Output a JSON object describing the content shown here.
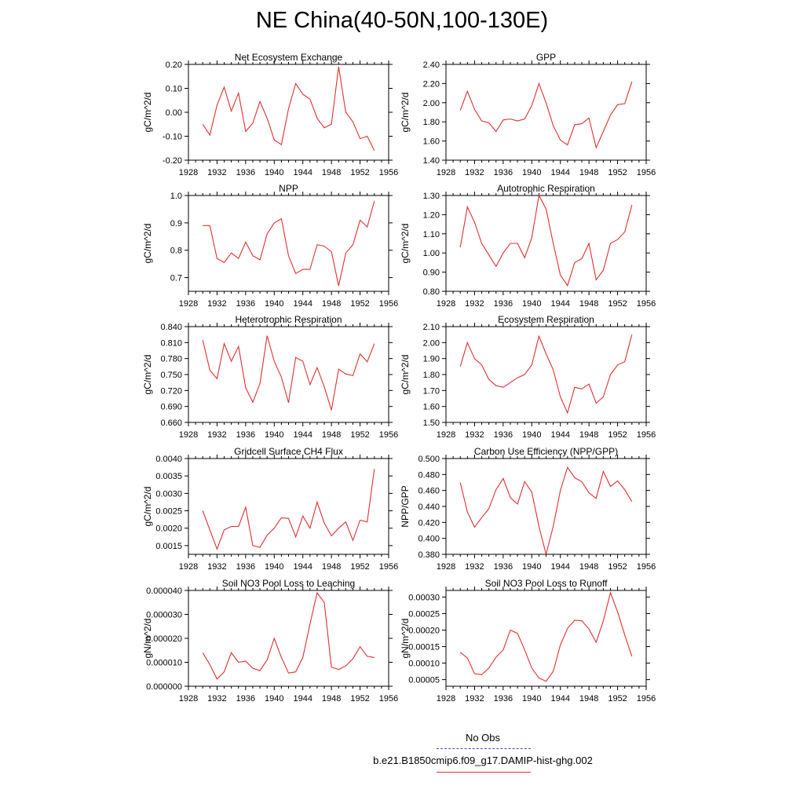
{
  "title": "NE China(40-50N,100-130E)",
  "legend": {
    "obs_label": "No Obs",
    "model_label": "b.e21.B1850cmip6.f09_g17.DAMIP-hist-ghg.002",
    "obs_color": "#4a4ad0",
    "model_color": "#e03030"
  },
  "chart_data": [
    {
      "type": "line",
      "title": "Net Ecosystem Exchange",
      "ylabel": "gC/m^2/d",
      "xlim": [
        1928,
        1956
      ],
      "xticks": [
        "1928",
        "1932",
        "1936",
        "1940",
        "1944",
        "1948",
        "1952",
        "1956"
      ],
      "ylim": [
        -0.2,
        0.2
      ],
      "yticks": [
        "-0.20",
        "-0.10",
        "0.00",
        "0.10",
        "0.20"
      ],
      "x": [
        1930,
        1931,
        1932,
        1933,
        1934,
        1935,
        1936,
        1937,
        1938,
        1939,
        1940,
        1941,
        1942,
        1943,
        1944,
        1945,
        1946,
        1947,
        1948,
        1949,
        1950,
        1951,
        1952,
        1953,
        1954
      ],
      "values": [
        -0.05,
        -0.095,
        0.03,
        0.105,
        0.005,
        0.08,
        -0.08,
        -0.045,
        0.045,
        -0.025,
        -0.115,
        -0.135,
        0.015,
        0.12,
        0.075,
        0.055,
        -0.025,
        -0.065,
        -0.05,
        0.19,
        0.0,
        -0.04,
        -0.11,
        -0.1,
        -0.16
      ]
    },
    {
      "type": "line",
      "title": "GPP",
      "ylabel": "gC/m^2/d",
      "xlim": [
        1928,
        1956
      ],
      "xticks": [
        "1928",
        "1932",
        "1936",
        "1940",
        "1944",
        "1948",
        "1952",
        "1956"
      ],
      "ylim": [
        1.4,
        2.4
      ],
      "yticks": [
        "1.40",
        "1.60",
        "1.80",
        "2.00",
        "2.20",
        "2.40"
      ],
      "x": [
        1930,
        1931,
        1932,
        1933,
        1934,
        1935,
        1936,
        1937,
        1938,
        1939,
        1940,
        1941,
        1942,
        1943,
        1944,
        1945,
        1946,
        1947,
        1948,
        1949,
        1950,
        1951,
        1952,
        1953,
        1954
      ],
      "values": [
        1.92,
        2.12,
        1.93,
        1.81,
        1.79,
        1.7,
        1.82,
        1.83,
        1.81,
        1.83,
        1.97,
        2.2,
        2.0,
        1.76,
        1.61,
        1.56,
        1.77,
        1.78,
        1.84,
        1.53,
        1.7,
        1.87,
        1.98,
        1.99,
        2.22
      ]
    },
    {
      "type": "line",
      "title": "NPP",
      "ylabel": "gC/m^2/d",
      "xlim": [
        1928,
        1956
      ],
      "xticks": [
        "1928",
        "1932",
        "1936",
        "1940",
        "1944",
        "1948",
        "1952",
        "1956"
      ],
      "ylim": [
        0.65,
        1.0
      ],
      "yticks": [
        "0.7",
        "0.8",
        "0.9",
        "1.0"
      ],
      "ytick_values": [
        0.7,
        0.8,
        0.9,
        1.0
      ],
      "x": [
        1930,
        1931,
        1932,
        1933,
        1934,
        1935,
        1936,
        1937,
        1938,
        1939,
        1940,
        1941,
        1942,
        1943,
        1944,
        1945,
        1946,
        1947,
        1948,
        1949,
        1950,
        1951,
        1952,
        1953,
        1954
      ],
      "values": [
        0.89,
        0.89,
        0.77,
        0.755,
        0.79,
        0.77,
        0.83,
        0.78,
        0.765,
        0.86,
        0.9,
        0.915,
        0.78,
        0.715,
        0.73,
        0.73,
        0.82,
        0.815,
        0.795,
        0.67,
        0.79,
        0.82,
        0.91,
        0.885,
        0.98
      ]
    },
    {
      "type": "line",
      "title": "Autotrophic Respiration",
      "ylabel": "gC/m^2/d",
      "xlim": [
        1928,
        1956
      ],
      "xticks": [
        "1928",
        "1932",
        "1936",
        "1940",
        "1944",
        "1948",
        "1952",
        "1956"
      ],
      "ylim": [
        0.8,
        1.3
      ],
      "yticks": [
        "0.80",
        "0.90",
        "1.00",
        "1.10",
        "1.20",
        "1.30"
      ],
      "x": [
        1930,
        1931,
        1932,
        1933,
        1934,
        1935,
        1936,
        1937,
        1938,
        1939,
        1940,
        1941,
        1942,
        1943,
        1944,
        1945,
        1946,
        1947,
        1948,
        1949,
        1950,
        1951,
        1952,
        1953,
        1954
      ],
      "values": [
        1.03,
        1.24,
        1.16,
        1.05,
        0.99,
        0.93,
        1.0,
        1.05,
        1.05,
        0.975,
        1.08,
        1.3,
        1.23,
        1.05,
        0.885,
        0.83,
        0.95,
        0.97,
        1.05,
        0.86,
        0.91,
        1.05,
        1.07,
        1.11,
        1.25
      ]
    },
    {
      "type": "line",
      "title": "Heterotrophic Respiration",
      "ylabel": "gC/m^2/d",
      "xlim": [
        1928,
        1956
      ],
      "xticks": [
        "1928",
        "1932",
        "1936",
        "1940",
        "1944",
        "1948",
        "1952",
        "1956"
      ],
      "ylim": [
        0.66,
        0.84
      ],
      "yticks": [
        "0.660",
        "0.690",
        "0.720",
        "0.750",
        "0.780",
        "0.810",
        "0.840"
      ],
      "x": [
        1930,
        1931,
        1932,
        1933,
        1934,
        1935,
        1936,
        1937,
        1938,
        1939,
        1940,
        1941,
        1942,
        1943,
        1944,
        1945,
        1946,
        1947,
        1948,
        1949,
        1950,
        1951,
        1952,
        1953,
        1954
      ],
      "values": [
        0.815,
        0.758,
        0.742,
        0.808,
        0.775,
        0.803,
        0.725,
        0.698,
        0.733,
        0.823,
        0.775,
        0.745,
        0.697,
        0.782,
        0.775,
        0.731,
        0.763,
        0.727,
        0.683,
        0.76,
        0.751,
        0.748,
        0.789,
        0.774,
        0.808
      ]
    },
    {
      "type": "line",
      "title": "Ecosystem Respiration",
      "ylabel": "gC/m^2/d",
      "xlim": [
        1928,
        1956
      ],
      "xticks": [
        "1928",
        "1932",
        "1936",
        "1940",
        "1944",
        "1948",
        "1952",
        "1956"
      ],
      "ylim": [
        1.5,
        2.1
      ],
      "yticks": [
        "1.50",
        "1.60",
        "1.70",
        "1.80",
        "1.90",
        "2.00",
        "2.10"
      ],
      "x": [
        1930,
        1931,
        1932,
        1933,
        1934,
        1935,
        1936,
        1937,
        1938,
        1939,
        1940,
        1941,
        1942,
        1943,
        1944,
        1945,
        1946,
        1947,
        1948,
        1949,
        1950,
        1951,
        1952,
        1953,
        1954
      ],
      "values": [
        1.85,
        2.0,
        1.9,
        1.86,
        1.77,
        1.73,
        1.72,
        1.75,
        1.78,
        1.8,
        1.86,
        2.04,
        1.93,
        1.83,
        1.66,
        1.56,
        1.72,
        1.71,
        1.74,
        1.62,
        1.66,
        1.8,
        1.86,
        1.88,
        2.05
      ]
    },
    {
      "type": "line",
      "title": "Gridcell Surface CH4 Flux",
      "ylabel": "gC/m^2/d",
      "xlim": [
        1928,
        1956
      ],
      "xticks": [
        "1928",
        "1932",
        "1936",
        "1940",
        "1944",
        "1948",
        "1952",
        "1956"
      ],
      "ylim": [
        0.00125,
        0.004
      ],
      "yticks": [
        "0.0015",
        "0.0020",
        "0.0025",
        "0.0030",
        "0.0035",
        "0.0040"
      ],
      "ytick_values": [
        0.0015,
        0.002,
        0.0025,
        0.003,
        0.0035,
        0.004
      ],
      "x": [
        1930,
        1931,
        1932,
        1933,
        1934,
        1935,
        1936,
        1937,
        1938,
        1939,
        1940,
        1941,
        1942,
        1943,
        1944,
        1945,
        1946,
        1947,
        1948,
        1949,
        1950,
        1951,
        1952,
        1953,
        1954
      ],
      "values": [
        0.0025,
        0.00195,
        0.0014,
        0.00195,
        0.00205,
        0.00205,
        0.0026,
        0.0015,
        0.00145,
        0.0018,
        0.002,
        0.0023,
        0.00228,
        0.00175,
        0.00235,
        0.002,
        0.00275,
        0.00215,
        0.00178,
        0.002,
        0.00218,
        0.00165,
        0.00223,
        0.00218,
        0.0037
      ]
    },
    {
      "type": "line",
      "title": "Carbon Use Efficiency (NPP/GPP)",
      "ylabel": "NPP/GPP",
      "xlim": [
        1928,
        1956
      ],
      "xticks": [
        "1928",
        "1932",
        "1936",
        "1940",
        "1944",
        "1948",
        "1952",
        "1956"
      ],
      "ylim": [
        0.38,
        0.5
      ],
      "yticks": [
        "0.380",
        "0.400",
        "0.420",
        "0.440",
        "0.460",
        "0.480",
        "0.500"
      ],
      "x": [
        1930,
        1931,
        1932,
        1933,
        1934,
        1935,
        1936,
        1937,
        1938,
        1939,
        1940,
        1941,
        1942,
        1943,
        1944,
        1945,
        1946,
        1947,
        1948,
        1949,
        1950,
        1951,
        1952,
        1953,
        1954
      ],
      "values": [
        0.47,
        0.433,
        0.414,
        0.426,
        0.437,
        0.461,
        0.475,
        0.451,
        0.443,
        0.471,
        0.458,
        0.415,
        0.38,
        0.415,
        0.46,
        0.489,
        0.476,
        0.471,
        0.457,
        0.45,
        0.484,
        0.465,
        0.472,
        0.461,
        0.446
      ]
    },
    {
      "type": "line",
      "title": "Soil NO3 Pool Loss to Leaching",
      "ylabel": "gN/m^2/d",
      "xlim": [
        1928,
        1956
      ],
      "xticks": [
        "1928",
        "1932",
        "1936",
        "1940",
        "1944",
        "1948",
        "1952",
        "1956"
      ],
      "ylim": [
        0.0,
        4e-05
      ],
      "yticks": [
        "0.000000",
        "0.000010",
        "0.000020",
        "0.000030",
        "0.000040"
      ],
      "x": [
        1930,
        1931,
        1932,
        1933,
        1934,
        1935,
        1936,
        1937,
        1938,
        1939,
        1940,
        1941,
        1942,
        1943,
        1944,
        1945,
        1946,
        1947,
        1948,
        1949,
        1950,
        1951,
        1952,
        1953,
        1954
      ],
      "values": [
        1.4e-05,
        9e-06,
        3e-06,
        6e-06,
        1.4e-05,
        1e-05,
        1.05e-05,
        7.5e-06,
        6.5e-06,
        1.1e-05,
        2e-05,
        1.2e-05,
        5.5e-06,
        6e-06,
        1.2e-05,
        2.6e-05,
        3.9e-05,
        3.5e-05,
        8e-06,
        7e-06,
        8.5e-06,
        1.15e-05,
        1.65e-05,
        1.25e-05,
        1.2e-05
      ]
    },
    {
      "type": "line",
      "title": "Soil NO3 Pool Loss to Runoff",
      "ylabel": "gN/m^2/d",
      "xlim": [
        1928,
        1956
      ],
      "xticks": [
        "1928",
        "1932",
        "1936",
        "1940",
        "1944",
        "1948",
        "1952",
        "1956"
      ],
      "ylim": [
        3e-05,
        0.00032
      ],
      "yticks": [
        "0.00005",
        "0.00010",
        "0.00015",
        "0.00020",
        "0.00025",
        "0.00030"
      ],
      "ytick_values": [
        5e-05,
        0.0001,
        0.00015,
        0.0002,
        0.00025,
        0.0003
      ],
      "x": [
        1930,
        1931,
        1932,
        1933,
        1934,
        1935,
        1936,
        1937,
        1938,
        1939,
        1940,
        1941,
        1942,
        1943,
        1944,
        1945,
        1946,
        1947,
        1948,
        1949,
        1950,
        1951,
        1952,
        1953,
        1954
      ],
      "values": [
        0.000133,
        0.000115,
        6.8e-05,
        6.5e-05,
        8.5e-05,
        0.000118,
        0.00014,
        0.0002,
        0.00019,
        0.00014,
        8.5e-05,
        5.5e-05,
        4.5e-05,
        7.5e-05,
        0.000155,
        0.000205,
        0.00023,
        0.000228,
        0.000203,
        0.000163,
        0.000228,
        0.000313,
        0.000255,
        0.000185,
        0.00012
      ]
    }
  ]
}
